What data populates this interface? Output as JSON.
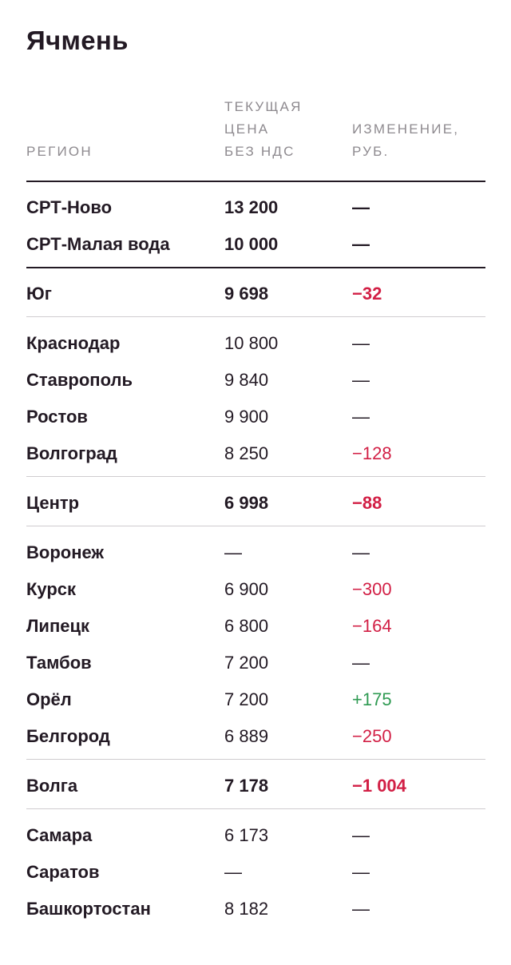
{
  "title": "Ячмень",
  "headers": {
    "region": "РЕГИОН",
    "price_line1": "ТЕКУЩАЯ",
    "price_line2": "ЦЕНА",
    "price_line3": "БЕЗ НДС",
    "change_line1": "ИЗМЕНЕНИЕ,",
    "change_line2": "РУБ."
  },
  "colors": {
    "negative": "#d21f45",
    "positive": "#2e9a52",
    "text": "#231a24",
    "header": "#8e8a8f"
  },
  "rows": [
    {
      "region": "СРТ-Ново",
      "price": "13 200",
      "change": "—",
      "trend": "neutral"
    },
    {
      "region": "СРТ-Малая вода",
      "price": "10 000",
      "change": "—",
      "trend": "neutral"
    },
    {
      "region": "Юг",
      "price": "9 698",
      "change": "−32",
      "trend": "negative"
    },
    {
      "region": "Краснодар",
      "price": "10 800",
      "change": "—",
      "trend": "neutral"
    },
    {
      "region": "Ставрополь",
      "price": "9 840",
      "change": "—",
      "trend": "neutral"
    },
    {
      "region": "Ростов",
      "price": "9 900",
      "change": "—",
      "trend": "neutral"
    },
    {
      "region": "Волгоград",
      "price": "8 250",
      "change": "−128",
      "trend": "negative"
    },
    {
      "region": "Центр",
      "price": "6 998",
      "change": "−88",
      "trend": "negative"
    },
    {
      "region": "Воронеж",
      "price": "—",
      "change": "—",
      "trend": "neutral"
    },
    {
      "region": "Курск",
      "price": "6 900",
      "change": "−300",
      "trend": "negative"
    },
    {
      "region": "Липецк",
      "price": "6 800",
      "change": "−164",
      "trend": "negative"
    },
    {
      "region": "Тамбов",
      "price": "7 200",
      "change": "—",
      "trend": "neutral"
    },
    {
      "region": "Орёл",
      "price": "7 200",
      "change": "+175",
      "trend": "positive"
    },
    {
      "region": "Белгород",
      "price": "6 889",
      "change": "−250",
      "trend": "negative"
    },
    {
      "region": "Волга",
      "price": "7 178",
      "change": "−1 004",
      "trend": "negative"
    },
    {
      "region": "Самара",
      "price": "6 173",
      "change": "—",
      "trend": "neutral"
    },
    {
      "region": "Саратов",
      "price": "—",
      "change": "—",
      "trend": "neutral"
    },
    {
      "region": "Башкортостан",
      "price": "8 182",
      "change": "—",
      "trend": "neutral"
    }
  ]
}
